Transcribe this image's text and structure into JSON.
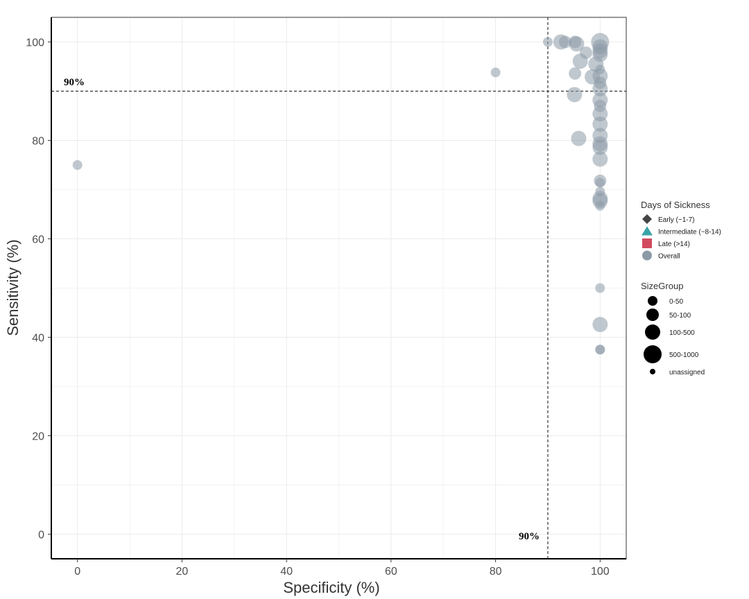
{
  "chart_data": {
    "type": "scatter",
    "title": "",
    "xlabel": "Specificity (%)",
    "ylabel": "Sensitivity (%)",
    "xlim": [
      -5,
      105
    ],
    "ylim": [
      -5,
      105
    ],
    "xticks": [
      0,
      20,
      40,
      60,
      80,
      100
    ],
    "yticks": [
      0,
      20,
      40,
      60,
      80,
      100
    ],
    "grid": true,
    "reference_lines": [
      {
        "axis": "x",
        "value": 90,
        "label": "90%"
      },
      {
        "axis": "y",
        "value": 90,
        "label": "90%"
      }
    ],
    "point_color": "#8c9aa7",
    "legend_shape": {
      "title": "Days of Sickness",
      "items": [
        {
          "label": "Early (~1-7)",
          "shape": "diamond",
          "color": "#444444"
        },
        {
          "label": "Intermediate (~8-14)",
          "shape": "triangle",
          "color": "#3aa3a8"
        },
        {
          "label": "Late (>14)",
          "shape": "square",
          "color": "#d24a5e"
        },
        {
          "label": "Overall",
          "shape": "circle",
          "color": "#8c9aa7"
        }
      ]
    },
    "legend_size": {
      "title": "SizeGroup",
      "items": [
        {
          "label": "0-50",
          "group": "0-50"
        },
        {
          "label": "50-100",
          "group": "50-100"
        },
        {
          "label": "100-500",
          "group": "100-500"
        },
        {
          "label": "500-1000",
          "group": "500-1000"
        },
        {
          "label": "unassigned",
          "group": "unassigned"
        }
      ]
    },
    "series": [
      {
        "name": "Overall",
        "points": [
          {
            "x": 0,
            "y": 75,
            "group": "0-50"
          },
          {
            "x": 80,
            "y": 93.8,
            "group": "0-50"
          },
          {
            "x": 90,
            "y": 100,
            "group": "0-50"
          },
          {
            "x": 92.5,
            "y": 100,
            "group": "100-500"
          },
          {
            "x": 93.3,
            "y": 100,
            "group": "50-100"
          },
          {
            "x": 95.2,
            "y": 100,
            "group": "50-100"
          },
          {
            "x": 95.5,
            "y": 99.6,
            "group": "100-500"
          },
          {
            "x": 97.3,
            "y": 97.8,
            "group": "50-100"
          },
          {
            "x": 96.2,
            "y": 96.1,
            "group": "100-500"
          },
          {
            "x": 99.2,
            "y": 95.5,
            "group": "100-500"
          },
          {
            "x": 95.2,
            "y": 93.6,
            "group": "50-100"
          },
          {
            "x": 98.5,
            "y": 92.9,
            "group": "100-500"
          },
          {
            "x": 95.1,
            "y": 89.3,
            "group": "100-500"
          },
          {
            "x": 95.9,
            "y": 80.4,
            "group": "100-500"
          },
          {
            "x": 100,
            "y": 100,
            "group": "500-1000"
          },
          {
            "x": 100,
            "y": 99,
            "group": "100-500"
          },
          {
            "x": 100,
            "y": 98.2,
            "group": "100-500"
          },
          {
            "x": 100,
            "y": 97.5,
            "group": "100-500"
          },
          {
            "x": 100,
            "y": 94.4,
            "group": "0-50"
          },
          {
            "x": 100,
            "y": 93.1,
            "group": "100-500"
          },
          {
            "x": 100,
            "y": 91.7,
            "group": "50-100"
          },
          {
            "x": 100,
            "y": 90.5,
            "group": "100-500"
          },
          {
            "x": 100,
            "y": 88.2,
            "group": "100-500"
          },
          {
            "x": 100,
            "y": 87,
            "group": "50-100"
          },
          {
            "x": 100,
            "y": 85.4,
            "group": "100-500"
          },
          {
            "x": 100,
            "y": 83.3,
            "group": "100-500"
          },
          {
            "x": 100,
            "y": 81,
            "group": "100-500"
          },
          {
            "x": 100,
            "y": 79.3,
            "group": "100-500"
          },
          {
            "x": 100,
            "y": 78.6,
            "group": "100-500"
          },
          {
            "x": 100,
            "y": 76.2,
            "group": "100-500"
          },
          {
            "x": 100,
            "y": 71.8,
            "group": "50-100"
          },
          {
            "x": 100,
            "y": 71.4,
            "group": "0-50"
          },
          {
            "x": 100,
            "y": 69.6,
            "group": "0-50"
          },
          {
            "x": 100,
            "y": 68.2,
            "group": "100-500"
          },
          {
            "x": 100,
            "y": 67.7,
            "group": "100-500"
          },
          {
            "x": 100,
            "y": 66.7,
            "group": "0-50"
          },
          {
            "x": 100,
            "y": 50,
            "group": "0-50"
          },
          {
            "x": 100,
            "y": 42.6,
            "group": "100-500"
          },
          {
            "x": 100,
            "y": 37.5,
            "group": "0-50"
          },
          {
            "x": 100,
            "y": 37.5,
            "group": "0-50"
          }
        ]
      }
    ]
  }
}
